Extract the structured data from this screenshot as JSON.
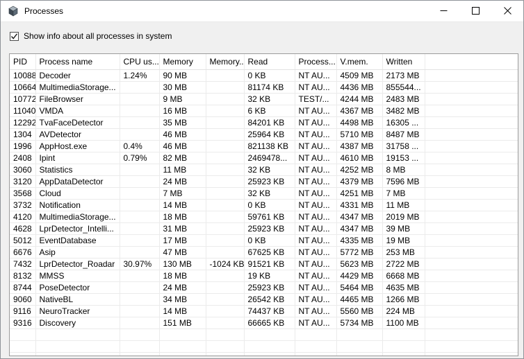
{
  "window": {
    "title": "Processes",
    "controls": [
      {
        "name": "minimize",
        "icon": "minimize-icon"
      },
      {
        "name": "maximize",
        "icon": "maximize-icon"
      },
      {
        "name": "close",
        "icon": "close-icon"
      }
    ]
  },
  "toolbar": {
    "checkbox_label": "Show info about all processes in system",
    "checkbox_checked": true
  },
  "table": {
    "columns": [
      "PID",
      "Process name",
      "CPU us...",
      "Memory",
      "Memory...",
      "Read",
      "Process...",
      "V.mem.",
      "Written"
    ],
    "rows": [
      [
        "10088",
        "Decoder",
        "1.24%",
        "90 MB",
        "",
        "0 KB",
        "NT AU...",
        "4509 MB",
        "2173 MB"
      ],
      [
        "10664",
        "MultimediaStorage...",
        "",
        "30 MB",
        "",
        "81174 KB",
        "NT AU...",
        "4436 MB",
        "855544..."
      ],
      [
        "10772",
        "FileBrowser",
        "",
        "9 MB",
        "",
        "32 KB",
        "TEST/...",
        "4244 MB",
        "2483 MB"
      ],
      [
        "11040",
        "VMDA",
        "",
        "16 MB",
        "",
        "6 KB",
        "NT AU...",
        "4367 MB",
        "3482 MB"
      ],
      [
        "12292",
        "TvaFaceDetector",
        "",
        "35 MB",
        "",
        "84201 KB",
        "NT AU...",
        "4498 MB",
        "16305 ..."
      ],
      [
        "1304",
        "AVDetector",
        "",
        "46 MB",
        "",
        "25964 KB",
        "NT AU...",
        "5710 MB",
        "8487 MB"
      ],
      [
        "1996",
        "AppHost.exe",
        "0.4%",
        "46 MB",
        "",
        "821138 KB",
        "NT AU...",
        "4387 MB",
        "31758 ..."
      ],
      [
        "2408",
        "Ipint",
        "0.79%",
        "82 MB",
        "",
        "2469478...",
        "NT AU...",
        "4610 MB",
        "19153 ..."
      ],
      [
        "3060",
        "Statistics",
        "",
        "11 MB",
        "",
        "32 KB",
        "NT AU...",
        "4252 MB",
        "8 MB"
      ],
      [
        "3120",
        "AppDataDetector",
        "",
        "24 MB",
        "",
        "25923 KB",
        "NT AU...",
        "4379 MB",
        "7596 MB"
      ],
      [
        "3568",
        "Cloud",
        "",
        "7 MB",
        "",
        "32 KB",
        "NT AU...",
        "4251 MB",
        "7 MB"
      ],
      [
        "3732",
        "Notification",
        "",
        "14 MB",
        "",
        "0 KB",
        "NT AU...",
        "4331 MB",
        "11 MB"
      ],
      [
        "4120",
        "MultimediaStorage...",
        "",
        "18 MB",
        "",
        "59761 KB",
        "NT AU...",
        "4347 MB",
        "2019 MB"
      ],
      [
        "4628",
        "LprDetector_Intelli...",
        "",
        "31 MB",
        "",
        "25923 KB",
        "NT AU...",
        "4347 MB",
        "39 MB"
      ],
      [
        "5012",
        "EventDatabase",
        "",
        "17 MB",
        "",
        "0 KB",
        "NT AU...",
        "4335 MB",
        "19 MB"
      ],
      [
        "6676",
        "Asip",
        "",
        "47 MB",
        "",
        "67625 KB",
        "NT AU...",
        "5772 MB",
        "253 MB"
      ],
      [
        "7432",
        "LprDetector_Roadar",
        "30.97%",
        "130 MB",
        "-1024 KB",
        "91521 KB",
        "NT AU...",
        "5623 MB",
        "2722 MB"
      ],
      [
        "8132",
        "MMSS",
        "",
        "18 MB",
        "",
        "19 KB",
        "NT AU...",
        "4429 MB",
        "6668 MB"
      ],
      [
        "8744",
        "PoseDetector",
        "",
        "24 MB",
        "",
        "25923 KB",
        "NT AU...",
        "5464 MB",
        "4635 MB"
      ],
      [
        "9060",
        "NativeBL",
        "",
        "34 MB",
        "",
        "26542 KB",
        "NT AU...",
        "4465 MB",
        "1266 MB"
      ],
      [
        "9116",
        "NeuroTracker",
        "",
        "14 MB",
        "",
        "74437 KB",
        "NT AU...",
        "5560 MB",
        "224 MB"
      ],
      [
        "9316",
        "Discovery",
        "",
        "151 MB",
        "",
        "66665 KB",
        "NT AU...",
        "5734 MB",
        "1100 MB"
      ]
    ]
  },
  "colors": {
    "titlebar_bg": "#ffffff",
    "client_bg": "#f0f0f0",
    "table_bg": "#ffffff",
    "grid_line": "#ebebeb",
    "table_border": "#9b9b9b",
    "text": "#000000"
  }
}
